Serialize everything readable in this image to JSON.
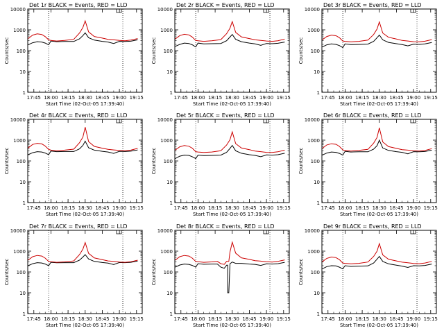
{
  "figure": {
    "xlabel": "Start Time (02-Oct-05 17:39:40)",
    "ylabel": "Counts/sec"
  },
  "chart_data": [
    {
      "type": "line",
      "title": "Det 1r BLACK = Events, RED = LLD",
      "xlabel": "Start Time (02-Oct-05 17:39:40)",
      "ylabel": "Counts/sec",
      "y_scale": "log",
      "ylim": [
        1,
        10000
      ],
      "yticks": [
        1,
        10,
        100,
        1000,
        10000
      ],
      "xlim": [
        "17:39:40",
        "19:20:00"
      ],
      "xticks": [
        "17:45",
        "18:00",
        "18:15",
        "18:30",
        "18:45",
        "19:00",
        "19:15"
      ],
      "vlines_dotted": [
        "17:58",
        "19:03"
      ],
      "x": [
        "17:40",
        "17:44",
        "17:48",
        "17:52",
        "17:55",
        "17:58",
        "18:00",
        "18:05",
        "18:12",
        "18:20",
        "18:25",
        "18:28",
        "18:30",
        "18:33",
        "18:38",
        "18:45",
        "18:50",
        "18:55",
        "19:00",
        "19:05",
        "19:10",
        "19:16"
      ],
      "series": [
        {
          "name": "BLACK = Events",
          "color": "#000000",
          "values": [
            190,
            240,
            270,
            260,
            230,
            190,
            290,
            270,
            275,
            275,
            370,
            530,
            720,
            420,
            320,
            280,
            260,
            220,
            280,
            275,
            285,
            330
          ]
        },
        {
          "name": "RED = LLD",
          "color": "#cc0000",
          "values": [
            380,
            560,
            640,
            600,
            470,
            330,
            310,
            290,
            310,
            350,
            700,
            1300,
            2700,
            800,
            480,
            400,
            350,
            330,
            310,
            300,
            320,
            380
          ]
        }
      ]
    },
    {
      "type": "line",
      "title": "Det 2r BLACK = Events, RED = LLD",
      "xlabel": "Start Time (02-Oct-05 17:39:40)",
      "ylabel": "Counts/sec",
      "y_scale": "log",
      "ylim": [
        1,
        10000
      ],
      "yticks": [
        1,
        10,
        100,
        1000,
        10000
      ],
      "xlim": [
        "17:39:40",
        "19:20:00"
      ],
      "xticks": [
        "17:45",
        "18:00",
        "18:15",
        "18:30",
        "18:45",
        "19:00",
        "19:15"
      ],
      "vlines_dotted": [
        "17:58",
        "19:03"
      ],
      "x": [
        "17:40",
        "17:44",
        "17:48",
        "17:52",
        "17:55",
        "17:58",
        "18:00",
        "18:05",
        "18:12",
        "18:20",
        "18:25",
        "18:28",
        "18:30",
        "18:33",
        "18:38",
        "18:45",
        "18:50",
        "18:55",
        "19:00",
        "19:05",
        "19:10",
        "19:16"
      ],
      "series": [
        {
          "name": "BLACK = Events",
          "color": "#000000",
          "values": [
            160,
            200,
            230,
            220,
            190,
            150,
            230,
            210,
            215,
            220,
            300,
            450,
            600,
            350,
            270,
            230,
            210,
            180,
            220,
            215,
            225,
            260
          ]
        },
        {
          "name": "RED = LLD",
          "color": "#cc0000",
          "values": [
            360,
            530,
            610,
            570,
            450,
            310,
            300,
            280,
            300,
            340,
            650,
            1200,
            2500,
            750,
            460,
            380,
            330,
            310,
            290,
            280,
            300,
            360
          ]
        }
      ]
    },
    {
      "type": "line",
      "title": "Det 3r BLACK = Events, RED = LLD",
      "xlabel": "Start Time (02-Oct-05 17:39:40)",
      "ylabel": "Counts/sec",
      "y_scale": "log",
      "ylim": [
        1,
        10000
      ],
      "yticks": [
        1,
        10,
        100,
        1000,
        10000
      ],
      "xlim": [
        "17:39:40",
        "19:20:00"
      ],
      "xticks": [
        "17:45",
        "18:00",
        "18:15",
        "18:30",
        "18:45",
        "19:00",
        "19:15"
      ],
      "vlines_dotted": [
        "17:58",
        "19:03"
      ],
      "x": [
        "17:40",
        "17:44",
        "17:48",
        "17:52",
        "17:55",
        "17:58",
        "18:00",
        "18:05",
        "18:12",
        "18:20",
        "18:25",
        "18:28",
        "18:30",
        "18:33",
        "18:38",
        "18:45",
        "18:50",
        "18:55",
        "19:00",
        "19:05",
        "19:10",
        "19:16"
      ],
      "series": [
        {
          "name": "BLACK = Events",
          "color": "#000000",
          "values": [
            150,
            190,
            210,
            200,
            175,
            140,
            210,
            195,
            200,
            205,
            280,
            420,
            560,
            330,
            250,
            215,
            195,
            170,
            205,
            200,
            210,
            245
          ]
        },
        {
          "name": "RED = LLD",
          "color": "#cc0000",
          "values": [
            330,
            480,
            560,
            520,
            420,
            290,
            280,
            265,
            280,
            320,
            600,
            1100,
            2400,
            700,
            440,
            360,
            310,
            290,
            270,
            265,
            285,
            340
          ]
        }
      ]
    },
    {
      "type": "line",
      "title": "Det 4r BLACK = Events, RED = LLD",
      "xlabel": "Start Time (02-Oct-05 17:39:40)",
      "ylabel": "Counts/sec",
      "y_scale": "log",
      "ylim": [
        1,
        10000
      ],
      "yticks": [
        1,
        10,
        100,
        1000,
        10000
      ],
      "xlim": [
        "17:39:40",
        "19:20:00"
      ],
      "xticks": [
        "17:45",
        "18:00",
        "18:15",
        "18:30",
        "18:45",
        "19:00",
        "19:15"
      ],
      "vlines_dotted": [
        "17:58",
        "19:03"
      ],
      "x": [
        "17:40",
        "17:44",
        "17:48",
        "17:52",
        "17:55",
        "17:58",
        "18:00",
        "18:05",
        "18:12",
        "18:20",
        "18:25",
        "18:28",
        "18:30",
        "18:33",
        "18:38",
        "18:45",
        "18:50",
        "18:55",
        "19:00",
        "19:05",
        "19:10",
        "19:16"
      ],
      "series": [
        {
          "name": "BLACK = Events",
          "color": "#000000",
          "values": [
            200,
            250,
            280,
            270,
            240,
            200,
            300,
            280,
            285,
            285,
            380,
            560,
            900,
            430,
            330,
            290,
            270,
            230,
            290,
            285,
            295,
            340
          ]
        },
        {
          "name": "RED = LLD",
          "color": "#cc0000",
          "values": [
            420,
            620,
            700,
            660,
            520,
            360,
            330,
            310,
            330,
            370,
            750,
            1400,
            4200,
            850,
            500,
            410,
            360,
            340,
            320,
            310,
            330,
            400
          ]
        }
      ]
    },
    {
      "type": "line",
      "title": "Det 5r BLACK = Events, RED = LLD",
      "xlabel": "Start Time (02-Oct-05 17:39:40)",
      "ylabel": "Counts/sec",
      "y_scale": "log",
      "ylim": [
        1,
        10000
      ],
      "yticks": [
        1,
        10,
        100,
        1000,
        10000
      ],
      "xlim": [
        "17:39:40",
        "19:20:00"
      ],
      "xticks": [
        "17:45",
        "18:00",
        "18:15",
        "18:30",
        "18:45",
        "19:00",
        "19:15"
      ],
      "vlines_dotted": [
        "17:58",
        "19:03"
      ],
      "x": [
        "17:40",
        "17:44",
        "17:48",
        "17:52",
        "17:55",
        "17:58",
        "18:00",
        "18:05",
        "18:12",
        "18:20",
        "18:25",
        "18:28",
        "18:30",
        "18:33",
        "18:38",
        "18:45",
        "18:50",
        "18:55",
        "19:00",
        "19:05",
        "19:10",
        "19:16"
      ],
      "series": [
        {
          "name": "BLACK = Events",
          "color": "#000000",
          "values": [
            130,
            170,
            190,
            185,
            160,
            130,
            190,
            180,
            185,
            190,
            260,
            400,
            560,
            310,
            235,
            200,
            185,
            160,
            195,
            190,
            200,
            235
          ]
        },
        {
          "name": "RED = LLD",
          "color": "#cc0000",
          "values": [
            330,
            480,
            550,
            510,
            410,
            280,
            270,
            255,
            270,
            310,
            580,
            1050,
            2500,
            680,
            420,
            350,
            300,
            280,
            260,
            255,
            275,
            330
          ]
        }
      ]
    },
    {
      "type": "line",
      "title": "Det 6r BLACK = Events, RED = LLD",
      "xlabel": "Start Time (02-Oct-05 17:39:40)",
      "ylabel": "Counts/sec",
      "y_scale": "log",
      "ylim": [
        1,
        10000
      ],
      "yticks": [
        1,
        10,
        100,
        1000,
        10000
      ],
      "xlim": [
        "17:39:40",
        "19:20:00"
      ],
      "xticks": [
        "17:45",
        "18:00",
        "18:15",
        "18:30",
        "18:45",
        "19:00",
        "19:15"
      ],
      "vlines_dotted": [
        "17:58",
        "19:03"
      ],
      "x": [
        "17:40",
        "17:44",
        "17:48",
        "17:52",
        "17:55",
        "17:58",
        "18:00",
        "18:05",
        "18:12",
        "18:20",
        "18:25",
        "18:28",
        "18:30",
        "18:33",
        "18:38",
        "18:45",
        "18:50",
        "18:55",
        "19:00",
        "19:05",
        "19:10",
        "19:16"
      ],
      "series": [
        {
          "name": "BLACK = Events",
          "color": "#000000",
          "values": [
            190,
            240,
            270,
            260,
            230,
            190,
            290,
            270,
            275,
            275,
            370,
            540,
            1000,
            420,
            320,
            280,
            260,
            220,
            280,
            275,
            285,
            330
          ]
        },
        {
          "name": "RED = LLD",
          "color": "#cc0000",
          "values": [
            400,
            590,
            670,
            630,
            500,
            340,
            320,
            300,
            320,
            360,
            720,
            1350,
            3900,
            820,
            490,
            400,
            350,
            330,
            310,
            300,
            320,
            390
          ]
        }
      ]
    },
    {
      "type": "line",
      "title": "Det 7r BLACK = Events, RED = LLD",
      "xlabel": "Start Time (02-Oct-05 17:39:40)",
      "ylabel": "Counts/sec",
      "y_scale": "log",
      "ylim": [
        1,
        10000
      ],
      "yticks": [
        1,
        10,
        100,
        1000,
        10000
      ],
      "xlim": [
        "17:39:40",
        "19:20:00"
      ],
      "xticks": [
        "17:45",
        "18:00",
        "18:15",
        "18:30",
        "18:45",
        "19:00",
        "19:15"
      ],
      "vlines_dotted": [
        "17:58",
        "19:03"
      ],
      "x": [
        "17:40",
        "17:44",
        "17:48",
        "17:52",
        "17:55",
        "17:58",
        "18:00",
        "18:05",
        "18:12",
        "18:20",
        "18:25",
        "18:28",
        "18:30",
        "18:33",
        "18:38",
        "18:45",
        "18:50",
        "18:55",
        "19:00",
        "19:05",
        "19:10",
        "19:16"
      ],
      "series": [
        {
          "name": "BLACK = Events",
          "color": "#000000",
          "values": [
            200,
            250,
            280,
            270,
            240,
            200,
            290,
            275,
            280,
            280,
            370,
            520,
            680,
            420,
            320,
            285,
            265,
            225,
            285,
            280,
            290,
            335
          ]
        },
        {
          "name": "RED = LLD",
          "color": "#cc0000",
          "values": [
            370,
            540,
            620,
            580,
            460,
            320,
            310,
            290,
            305,
            340,
            680,
            1250,
            2600,
            780,
            470,
            390,
            340,
            320,
            300,
            290,
            310,
            370
          ]
        }
      ]
    },
    {
      "type": "line",
      "title": "Det 8r BLACK = Events, RED = LLD",
      "xlabel": "Start Time (02-Oct-05 17:39:40)",
      "ylabel": "Counts/sec",
      "y_scale": "log",
      "ylim": [
        1,
        10000
      ],
      "yticks": [
        1,
        10,
        100,
        1000,
        10000
      ],
      "xlim": [
        "17:39:40",
        "19:20:00"
      ],
      "xticks": [
        "17:45",
        "18:00",
        "18:15",
        "18:30",
        "18:45",
        "19:00",
        "19:15"
      ],
      "vlines_dotted": [
        "17:58",
        "19:03"
      ],
      "x": [
        "17:40",
        "17:44",
        "17:48",
        "17:52",
        "17:55",
        "17:58",
        "18:00",
        "18:05",
        "18:12",
        "18:17",
        "18:20",
        "18:23",
        "18:25",
        "18:26",
        "18:26",
        "18:27",
        "18:28",
        "18:30",
        "18:33",
        "18:38",
        "18:45",
        "18:50",
        "18:55",
        "19:00",
        "19:05",
        "19:10",
        "19:16"
      ],
      "series": [
        {
          "name": "BLACK = Events",
          "color": "#000000",
          "values": [
            170,
            215,
            240,
            230,
            205,
            170,
            250,
            235,
            240,
            240,
            170,
            150,
            210,
            210,
            10,
            10,
            250,
            300,
            260,
            260,
            240,
            230,
            205,
            245,
            240,
            250,
            290
          ]
        },
        {
          "name": "RED = LLD",
          "color": "#cc0000",
          "values": [
            370,
            540,
            620,
            580,
            460,
            320,
            310,
            290,
            305,
            320,
            250,
            230,
            320,
            320,
            320,
            320,
            900,
            2700,
            800,
            480,
            400,
            350,
            330,
            310,
            300,
            320,
            380
          ]
        }
      ]
    },
    {
      "type": "line",
      "title": "Det 9r BLACK = Events, RED = LLD",
      "xlabel": "Start Time (02-Oct-05 17:39:40)",
      "ylabel": "Counts/sec",
      "y_scale": "log",
      "ylim": [
        1,
        10000
      ],
      "yticks": [
        1,
        10,
        100,
        1000,
        10000
      ],
      "xlim": [
        "17:39:40",
        "19:20:00"
      ],
      "xticks": [
        "17:45",
        "18:00",
        "18:15",
        "18:30",
        "18:45",
        "19:00",
        "19:15"
      ],
      "vlines_dotted": [
        "17:58",
        "19:03"
      ],
      "x": [
        "17:40",
        "17:44",
        "17:48",
        "17:52",
        "17:55",
        "17:58",
        "18:00",
        "18:05",
        "18:12",
        "18:20",
        "18:25",
        "18:28",
        "18:30",
        "18:33",
        "18:38",
        "18:45",
        "18:50",
        "18:55",
        "19:00",
        "19:05",
        "19:10",
        "19:16"
      ],
      "series": [
        {
          "name": "BLACK = Events",
          "color": "#000000",
          "values": [
            140,
            180,
            200,
            195,
            170,
            140,
            200,
            185,
            190,
            195,
            270,
            410,
            560,
            320,
            245,
            210,
            190,
            165,
            200,
            195,
            205,
            240
          ]
        },
        {
          "name": "RED = LLD",
          "color": "#cc0000",
          "values": [
            310,
            450,
            520,
            490,
            390,
            270,
            260,
            245,
            260,
            300,
            560,
            1000,
            2300,
            660,
            410,
            340,
            295,
            275,
            255,
            250,
            270,
            320
          ]
        }
      ]
    }
  ]
}
